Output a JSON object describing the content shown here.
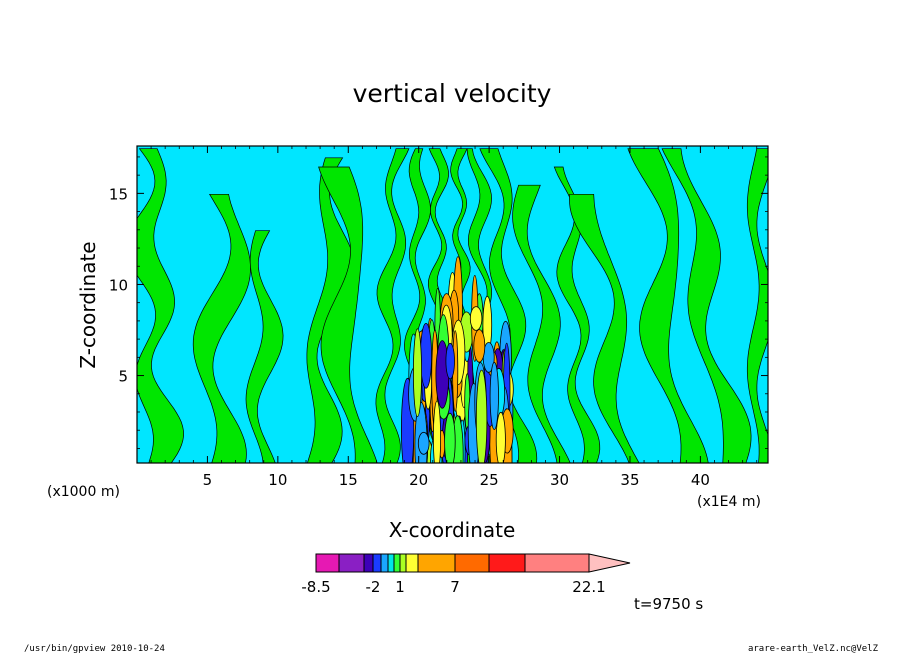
{
  "chart_data": {
    "type": "heatmap",
    "title": "vertical velocity",
    "xlabel": "X-coordinate",
    "ylabel": "Z-coordinate",
    "x_unit_note": "(x1000 m)",
    "x_unit_note_right": "(x1E4 m)",
    "xlim": [
      0,
      44.8
    ],
    "ylim": [
      0.2,
      17.6
    ],
    "x_ticks": [
      5,
      10,
      15,
      20,
      25,
      30,
      35,
      40
    ],
    "x_tick_labels": [
      "5",
      "10",
      "15",
      "20",
      "25",
      "30",
      "35",
      "40"
    ],
    "y_ticks": [
      5,
      10,
      15
    ],
    "y_tick_labels": [
      "5",
      "10",
      "15"
    ],
    "colorbar": {
      "colors": [
        "#e619b3",
        "#8a1fc4",
        "#3d00b8",
        "#1a3cff",
        "#1aa6ff",
        "#00e6e6",
        "#33ff33",
        "#aaff22",
        "#ffff33",
        "#ffa500",
        "#ff6a00",
        "#ff1a1a",
        "#ff8080",
        "#ffc0c0"
      ],
      "tick_labels": [
        "-8.5",
        "-2",
        "1",
        "7",
        "22.1"
      ]
    },
    "background_level_color": "#00e6ff",
    "positive_level_color": "#00e600"
  },
  "time_label": "t=9750 s",
  "footer_left": "/usr/bin/gpview   2010-10-24",
  "footer_right": "arare-earth_VelZ.nc@VelZ"
}
